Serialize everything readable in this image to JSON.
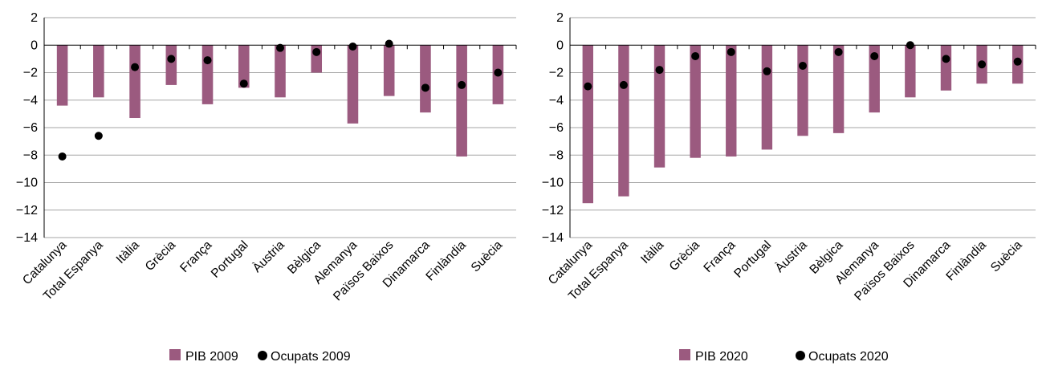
{
  "colors": {
    "bar": "#9b5a7f",
    "dot": "#000000",
    "grid": "#a6a6a6",
    "axis": "#000000"
  },
  "chart_data": [
    {
      "type": "bar",
      "categories": [
        "Catalunya",
        "Total Espanya",
        "Itàlia",
        "Grècia",
        "França",
        "Portugal",
        "Àustria",
        "Bèlgica",
        "Alemanya",
        "Països Baixos",
        "Dinamarca",
        "Finlàndia",
        "Suècia"
      ],
      "series": [
        {
          "name": "PIB 2009",
          "kind": "bar",
          "values": [
            -4.4,
            -3.8,
            -5.3,
            -2.9,
            -4.3,
            -3.1,
            -3.8,
            -2.0,
            -5.7,
            -3.7,
            -4.9,
            -8.1,
            -4.3
          ]
        },
        {
          "name": "Ocupats 2009",
          "kind": "scatter",
          "values": [
            -8.1,
            -6.6,
            -1.6,
            -1.0,
            -1.1,
            -2.8,
            -0.2,
            -0.5,
            -0.1,
            0.1,
            -3.1,
            -2.9,
            -2.0
          ]
        }
      ],
      "yticks": [
        2,
        0,
        -2,
        -4,
        -6,
        -8,
        -10,
        -12,
        -14
      ],
      "ylim": [
        -14,
        2
      ],
      "grid": true,
      "legend": "bottom-center"
    },
    {
      "type": "bar",
      "categories": [
        "Catalunya",
        "Total Espanya",
        "Itàlia",
        "Grècia",
        "França",
        "Portugal",
        "Àustria",
        "Bèlgica",
        "Alemanya",
        "Països Baixos",
        "Dinamarca",
        "Finlàndia",
        "Suècia"
      ],
      "series": [
        {
          "name": "PIB 2020",
          "kind": "bar",
          "values": [
            -11.5,
            -11.0,
            -8.9,
            -8.2,
            -8.1,
            -7.6,
            -6.6,
            -6.4,
            -4.9,
            -3.8,
            -3.3,
            -2.8,
            -2.8
          ]
        },
        {
          "name": "Ocupats 2020",
          "kind": "scatter",
          "values": [
            -3.0,
            -2.9,
            -1.8,
            -0.8,
            -0.5,
            -1.9,
            -1.5,
            -0.5,
            -0.8,
            0.0,
            -1.0,
            -1.4,
            -1.2
          ]
        }
      ],
      "yticks": [
        2,
        0,
        -2,
        -4,
        -6,
        -8,
        -10,
        -12,
        -14
      ],
      "ylim": [
        -14,
        2
      ],
      "grid": true,
      "legend": "bottom-center"
    }
  ]
}
